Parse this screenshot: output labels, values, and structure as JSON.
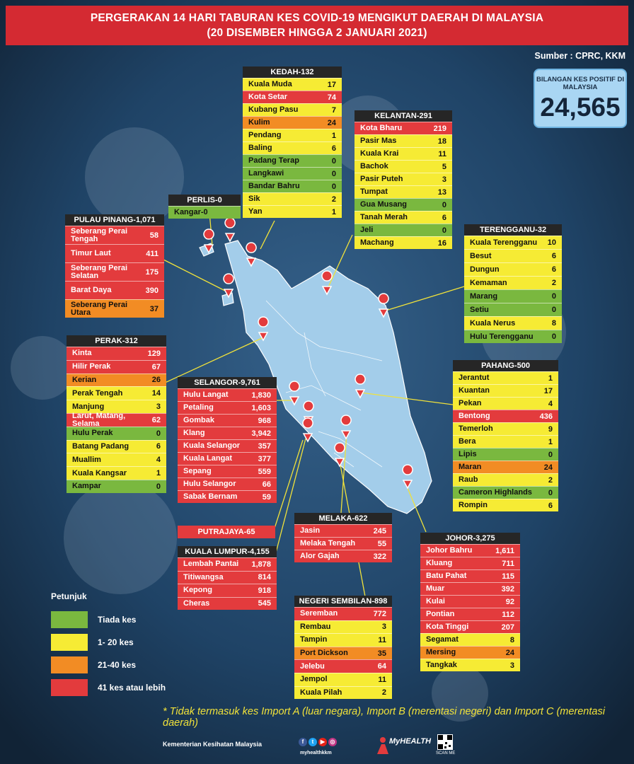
{
  "title_line1": "PERGERAKAN 14 HARI TABURAN KES COVID-19 MENGIKUT DAERAH DI MALAYSIA",
  "title_line2": "(20 DISEMBER HINGGA 2 JANUARI 2021)",
  "source": "Sumber : CPRC, KKM",
  "total": {
    "label": "BILANGAN KES POSITIF DI MALAYSIA",
    "value": "24,565"
  },
  "colors": {
    "green": "#7ab83f",
    "yellow": "#f6eb34",
    "orange": "#f28c24",
    "red": "#e33b3d",
    "banner": "#d42a32"
  },
  "states": {
    "kedah": {
      "title": "KEDAH-132",
      "rows": [
        {
          "n": "Kuala Muda",
          "v": "17",
          "c": "yellow"
        },
        {
          "n": "Kota Setar",
          "v": "74",
          "c": "red"
        },
        {
          "n": "Kubang Pasu",
          "v": "7",
          "c": "yellow"
        },
        {
          "n": "Kulim",
          "v": "24",
          "c": "orange"
        },
        {
          "n": "Pendang",
          "v": "1",
          "c": "yellow"
        },
        {
          "n": "Baling",
          "v": "6",
          "c": "yellow"
        },
        {
          "n": "Padang Terap",
          "v": "0",
          "c": "green"
        },
        {
          "n": "Langkawi",
          "v": "0",
          "c": "green"
        },
        {
          "n": "Bandar Bahru",
          "v": "0",
          "c": "green"
        },
        {
          "n": "Sik",
          "v": "2",
          "c": "yellow"
        },
        {
          "n": "Yan",
          "v": "1",
          "c": "yellow"
        }
      ]
    },
    "kelantan": {
      "title": "KELANTAN-291",
      "rows": [
        {
          "n": "Kota Bharu",
          "v": "219",
          "c": "red"
        },
        {
          "n": "Pasir Mas",
          "v": "18",
          "c": "yellow"
        },
        {
          "n": "Kuala Krai",
          "v": "11",
          "c": "yellow"
        },
        {
          "n": "Bachok",
          "v": "5",
          "c": "yellow"
        },
        {
          "n": "Pasir Puteh",
          "v": "3",
          "c": "yellow"
        },
        {
          "n": "Tumpat",
          "v": "13",
          "c": "yellow"
        },
        {
          "n": "Gua Musang",
          "v": "0",
          "c": "green"
        },
        {
          "n": "Tanah Merah",
          "v": "6",
          "c": "yellow"
        },
        {
          "n": "Jeli",
          "v": "0",
          "c": "green"
        },
        {
          "n": "Machang",
          "v": "16",
          "c": "yellow"
        }
      ]
    },
    "perlis": {
      "title": "PERLIS-0",
      "rows": [
        {
          "n": "Kangar-0",
          "v": "",
          "c": "green"
        }
      ]
    },
    "pulau_pinang": {
      "title": "PULAU PINANG-1,071",
      "rows": [
        {
          "n": "Seberang Perai Tengah",
          "v": "58",
          "c": "red"
        },
        {
          "n": "Timur Laut",
          "v": "411",
          "c": "red"
        },
        {
          "n": "Seberang Perai Selatan",
          "v": "175",
          "c": "red"
        },
        {
          "n": "Barat Daya",
          "v": "390",
          "c": "red"
        },
        {
          "n": "Seberang Perai Utara",
          "v": "37",
          "c": "orange"
        }
      ]
    },
    "terengganu": {
      "title": "TERENGGANU-32",
      "rows": [
        {
          "n": "Kuala Terengganu",
          "v": "10",
          "c": "yellow"
        },
        {
          "n": "Besut",
          "v": "6",
          "c": "yellow"
        },
        {
          "n": "Dungun",
          "v": "6",
          "c": "yellow"
        },
        {
          "n": "Kemaman",
          "v": "2",
          "c": "yellow"
        },
        {
          "n": "Marang",
          "v": "0",
          "c": "green"
        },
        {
          "n": "Setiu",
          "v": "0",
          "c": "green"
        },
        {
          "n": "Kuala Nerus",
          "v": "8",
          "c": "yellow"
        },
        {
          "n": "Hulu Terengganu",
          "v": "0",
          "c": "green"
        }
      ]
    },
    "perak": {
      "title": "PERAK-312",
      "rows": [
        {
          "n": "Kinta",
          "v": "129",
          "c": "red"
        },
        {
          "n": "Hilir Perak",
          "v": "67",
          "c": "red"
        },
        {
          "n": "Kerian",
          "v": "26",
          "c": "orange"
        },
        {
          "n": "Perak Tengah",
          "v": "14",
          "c": "yellow"
        },
        {
          "n": "Manjung",
          "v": "3",
          "c": "yellow"
        },
        {
          "n": "Larut, Matang, Selama",
          "v": "62",
          "c": "red"
        },
        {
          "n": "Hulu Perak",
          "v": "0",
          "c": "green"
        },
        {
          "n": "Batang Padang",
          "v": "6",
          "c": "yellow"
        },
        {
          "n": "Muallim",
          "v": "4",
          "c": "yellow"
        },
        {
          "n": "Kuala Kangsar",
          "v": "1",
          "c": "yellow"
        },
        {
          "n": "Kampar",
          "v": "0",
          "c": "green"
        }
      ]
    },
    "selangor": {
      "title": "SELANGOR-9,761",
      "rows": [
        {
          "n": "Hulu Langat",
          "v": "1,830",
          "c": "red"
        },
        {
          "n": "Petaling",
          "v": "1,603",
          "c": "red"
        },
        {
          "n": "Gombak",
          "v": "968",
          "c": "red"
        },
        {
          "n": "Klang",
          "v": "3,942",
          "c": "red"
        },
        {
          "n": "Kuala Selangor",
          "v": "357",
          "c": "red"
        },
        {
          "n": "Kuala Langat",
          "v": "377",
          "c": "red"
        },
        {
          "n": "Sepang",
          "v": "559",
          "c": "red"
        },
        {
          "n": "Hulu Selangor",
          "v": "66",
          "c": "red"
        },
        {
          "n": "Sabak Bernam",
          "v": "59",
          "c": "red"
        }
      ]
    },
    "pahang": {
      "title": "PAHANG-500",
      "rows": [
        {
          "n": "Jerantut",
          "v": "1",
          "c": "yellow"
        },
        {
          "n": "Kuantan",
          "v": "17",
          "c": "yellow"
        },
        {
          "n": "Pekan",
          "v": "4",
          "c": "yellow"
        },
        {
          "n": "Bentong",
          "v": "436",
          "c": "red"
        },
        {
          "n": "Temerloh",
          "v": "9",
          "c": "yellow"
        },
        {
          "n": "Bera",
          "v": "1",
          "c": "yellow"
        },
        {
          "n": "Lipis",
          "v": "0",
          "c": "green"
        },
        {
          "n": "Maran",
          "v": "24",
          "c": "orange"
        },
        {
          "n": "Raub",
          "v": "2",
          "c": "yellow"
        },
        {
          "n": "Cameron Highlands",
          "v": "0",
          "c": "green"
        },
        {
          "n": "Rompin",
          "v": "6",
          "c": "yellow"
        }
      ]
    },
    "melaka": {
      "title": "MELAKA-622",
      "rows": [
        {
          "n": "Jasin",
          "v": "245",
          "c": "red"
        },
        {
          "n": "Melaka Tengah",
          "v": "55",
          "c": "red"
        },
        {
          "n": "Alor Gajah",
          "v": "322",
          "c": "red"
        }
      ]
    },
    "kuala_lumpur": {
      "title": "KUALA LUMPUR-4,155",
      "rows": [
        {
          "n": "Lembah Pantai",
          "v": "1,878",
          "c": "red"
        },
        {
          "n": "Titiwangsa",
          "v": "814",
          "c": "red"
        },
        {
          "n": "Kepong",
          "v": "918",
          "c": "red"
        },
        {
          "n": "Cheras",
          "v": "545",
          "c": "red"
        }
      ]
    },
    "johor": {
      "title": "JOHOR-3,275",
      "rows": [
        {
          "n": "Johor Bahru",
          "v": "1,611",
          "c": "red"
        },
        {
          "n": "Kluang",
          "v": "711",
          "c": "red"
        },
        {
          "n": "Batu Pahat",
          "v": "115",
          "c": "red"
        },
        {
          "n": "Muar",
          "v": "392",
          "c": "red"
        },
        {
          "n": "Kulai",
          "v": "92",
          "c": "red"
        },
        {
          "n": "Pontian",
          "v": "112",
          "c": "red"
        },
        {
          "n": "Kota Tinggi",
          "v": "207",
          "c": "red"
        },
        {
          "n": "Segamat",
          "v": "8",
          "c": "yellow"
        },
        {
          "n": "Mersing",
          "v": "24",
          "c": "orange"
        },
        {
          "n": "Tangkak",
          "v": "3",
          "c": "yellow"
        }
      ]
    },
    "negeri_sembilan": {
      "title": "NEGERI SEMBILAN-898",
      "rows": [
        {
          "n": "Seremban",
          "v": "772",
          "c": "red"
        },
        {
          "n": "Rembau",
          "v": "3",
          "c": "yellow"
        },
        {
          "n": "Tampin",
          "v": "11",
          "c": "yellow"
        },
        {
          "n": "Port Dickson",
          "v": "35",
          "c": "orange"
        },
        {
          "n": "Jelebu",
          "v": "64",
          "c": "red"
        },
        {
          "n": "Jempol",
          "v": "11",
          "c": "yellow"
        },
        {
          "n": "Kuala Pilah",
          "v": "2",
          "c": "yellow"
        }
      ]
    }
  },
  "putrajaya": "PUTRAJAYA-65",
  "legend": {
    "title": "Petunjuk",
    "items": [
      {
        "label": "Tiada kes",
        "color": "green"
      },
      {
        "label": "1- 20 kes",
        "color": "yellow"
      },
      {
        "label": "21-40 kes",
        "color": "orange"
      },
      {
        "label": "41 kes atau lebih",
        "color": "red"
      }
    ]
  },
  "footnote": "* Tidak termasuk kes Import A (luar negara),  Import B (merentasi negeri) dan Import C (merentasi daerah)",
  "footer": {
    "ministry": "Kementerian Kesihatan Malaysia",
    "handle": "myhealthkkm",
    "brand": "MyHEALTH",
    "scan": "SCAN ME"
  }
}
